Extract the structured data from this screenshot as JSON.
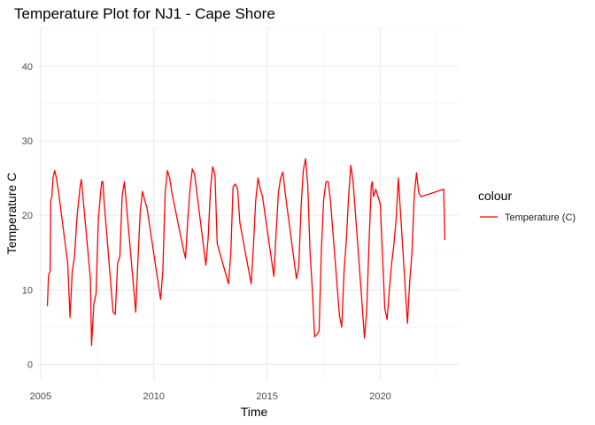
{
  "chart_data": {
    "type": "line",
    "title": "Temperature Plot for NJ1 - Cape Shore",
    "xlabel": "Time",
    "ylabel": "Temperature C",
    "xlim": [
      2004.85,
      2023.5
    ],
    "ylim": [
      -2.2,
      45.2
    ],
    "x_ticks": [
      2005,
      2010,
      2015,
      2020
    ],
    "x_tick_labels": [
      "2005",
      "2010",
      "2015",
      "2020"
    ],
    "y_ticks": [
      0,
      10,
      20,
      30,
      40
    ],
    "y_tick_labels": [
      "0",
      "10",
      "20",
      "30",
      "40"
    ],
    "grid": true,
    "legend": {
      "title": "colour",
      "position": "right"
    },
    "series": [
      {
        "name": "Temperature (C)",
        "color": "#ff0000",
        "x": [
          2005.3,
          2005.35,
          2005.42,
          2005.45,
          2005.5,
          2005.55,
          2005.62,
          2005.7,
          2005.8,
          2006.2,
          2006.3,
          2006.4,
          2006.5,
          2006.6,
          2006.7,
          2006.75,
          2006.8,
          2007.2,
          2007.25,
          2007.35,
          2007.45,
          2007.55,
          2007.65,
          2007.7,
          2007.75,
          2007.8,
          2008.2,
          2008.3,
          2008.4,
          2008.5,
          2008.6,
          2008.7,
          2009.2,
          2009.3,
          2009.4,
          2009.5,
          2009.6,
          2009.7,
          2010.3,
          2010.4,
          2010.5,
          2010.6,
          2010.7,
          2010.8,
          2011.3,
          2011.4,
          2011.5,
          2011.6,
          2011.7,
          2011.8,
          2012.3,
          2012.4,
          2012.5,
          2012.6,
          2012.7,
          2012.8,
          2013.3,
          2013.4,
          2013.5,
          2013.6,
          2013.7,
          2013.8,
          2014.3,
          2014.4,
          2014.5,
          2014.6,
          2014.7,
          2014.8,
          2015.3,
          2015.4,
          2015.5,
          2015.6,
          2015.7,
          2015.8,
          2016.3,
          2016.4,
          2016.5,
          2016.6,
          2016.7,
          2016.8,
          2016.9,
          2017.0,
          2017.1,
          2017.2,
          2017.3,
          2017.4,
          2017.5,
          2017.6,
          2017.7,
          2017.8,
          2018.2,
          2018.3,
          2018.4,
          2018.5,
          2018.6,
          2018.7,
          2018.8,
          2019.2,
          2019.3,
          2019.4,
          2019.5,
          2019.6,
          2019.65,
          2019.7,
          2019.8,
          2020.0,
          2020.2,
          2020.3,
          2020.4,
          2020.5,
          2020.6,
          2020.7,
          2020.8,
          2021.2,
          2021.3,
          2021.4,
          2021.5,
          2021.6,
          2021.7,
          2021.8,
          2022.8,
          2022.85
        ],
        "values": [
          7.8,
          12.0,
          12.5,
          22.0,
          22.5,
          25.0,
          26.0,
          25.0,
          23.0,
          13.5,
          6.3,
          12.5,
          14.5,
          19.5,
          22.5,
          24.0,
          24.8,
          11.5,
          2.5,
          8.0,
          9.5,
          19.5,
          23.0,
          24.5,
          24.5,
          22.0,
          7.0,
          6.7,
          13.5,
          14.5,
          22.5,
          24.5,
          7.0,
          14.0,
          20.5,
          23.2,
          22.0,
          21.0,
          8.7,
          12.5,
          23.0,
          26.0,
          25.0,
          23.0,
          15.5,
          14.2,
          19.5,
          23.5,
          26.2,
          25.5,
          13.3,
          17.0,
          23.5,
          26.5,
          25.5,
          16.2,
          10.8,
          15.0,
          23.8,
          24.2,
          23.5,
          19.0,
          10.8,
          16.0,
          22.0,
          25.0,
          23.5,
          22.5,
          11.8,
          17.5,
          23.0,
          25.0,
          25.8,
          23.0,
          11.5,
          13.0,
          21.0,
          26.0,
          27.6,
          24.0,
          15.0,
          10.0,
          3.7,
          4.0,
          4.5,
          15.5,
          22.0,
          24.5,
          24.5,
          22.0,
          6.5,
          5.0,
          12.5,
          16.5,
          22.5,
          26.7,
          24.5,
          8.0,
          3.5,
          7.0,
          16.0,
          24.0,
          24.5,
          22.5,
          23.5,
          21.5,
          7.5,
          6.0,
          10.0,
          13.5,
          16.0,
          19.5,
          25.0,
          5.5,
          11.0,
          15.0,
          22.5,
          25.7,
          23.0,
          22.5,
          23.5,
          16.7
        ]
      }
    ]
  }
}
